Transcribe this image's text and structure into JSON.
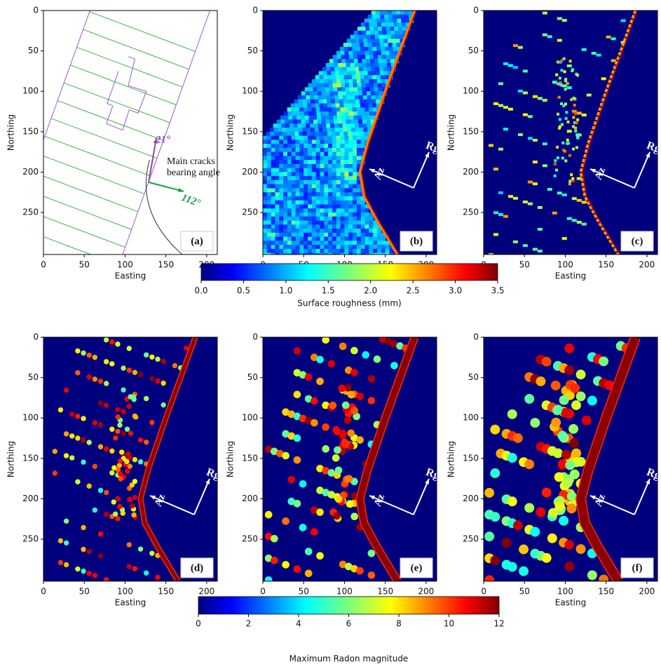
{
  "chart_data": [
    {
      "type": "diagram",
      "label": "(a)",
      "xlabel": "Easting",
      "ylabel": "Northing",
      "xlim": [
        0,
        213
      ],
      "ylim": [
        0,
        302
      ],
      "invert_y": true,
      "xticks": [
        0,
        50,
        100,
        150,
        200
      ],
      "yticks": [
        0,
        50,
        100,
        150,
        200,
        250
      ],
      "annotations": [
        "21°",
        "Main cracks",
        "bearing angle",
        "112°"
      ]
    },
    {
      "type": "heatmap",
      "label": "(b)",
      "xlabel": "Easting",
      "ylabel": "Northing",
      "xlim": [
        0,
        213
      ],
      "ylim": [
        0,
        302
      ],
      "invert_y": true,
      "xticks": [
        0,
        50,
        100,
        150,
        200
      ],
      "yticks": [
        0,
        50,
        100,
        150,
        200,
        250
      ],
      "annotations": [
        "Rg",
        "Az"
      ]
    },
    {
      "type": "heatmap",
      "label": "(c)",
      "xlabel": "Easting",
      "ylabel": "Northing",
      "xlim": [
        0,
        213
      ],
      "ylim": [
        0,
        302
      ],
      "invert_y": true,
      "xticks": [
        0,
        50,
        100,
        150,
        200
      ],
      "yticks": [
        0,
        50,
        100,
        150,
        200,
        250
      ],
      "annotations": [
        "Rg",
        "Az"
      ]
    },
    {
      "type": "heatmap",
      "label": "(d)",
      "xlabel": "Easting",
      "ylabel": "Northing",
      "xlim": [
        0,
        213
      ],
      "ylim": [
        0,
        302
      ],
      "invert_y": true,
      "xticks": [
        0,
        50,
        100,
        150,
        200
      ],
      "yticks": [
        0,
        50,
        100,
        150,
        200,
        250
      ],
      "annotations": [
        "Rg",
        "Az"
      ]
    },
    {
      "type": "heatmap",
      "label": "(e)",
      "xlabel": "Easting",
      "ylabel": "Northing",
      "xlim": [
        0,
        213
      ],
      "ylim": [
        0,
        302
      ],
      "invert_y": true,
      "xticks": [
        0,
        50,
        100,
        150,
        200
      ],
      "yticks": [
        0,
        50,
        100,
        150,
        200,
        250
      ],
      "annotations": [
        "Rg",
        "Az"
      ]
    },
    {
      "type": "heatmap",
      "label": "(f)",
      "xlabel": "Easting",
      "ylabel": "Northing",
      "xlim": [
        0,
        213
      ],
      "ylim": [
        0,
        302
      ],
      "invert_y": true,
      "xticks": [
        0,
        50,
        100,
        150,
        200
      ],
      "yticks": [
        0,
        50,
        100,
        150,
        200,
        250
      ],
      "annotations": [
        "Rg",
        "Az"
      ]
    },
    {
      "type": "colorbar",
      "label": "Surface roughness (mm)",
      "clim": [
        0,
        3.5
      ],
      "ticks": [
        {
          "value": 0,
          "label": "0.0"
        },
        {
          "value": 0.5,
          "label": "0.5"
        },
        {
          "value": 1,
          "label": "1.0"
        },
        {
          "value": 1.5,
          "label": "1.5"
        },
        {
          "value": 2,
          "label": "2.0"
        },
        {
          "value": 2.5,
          "label": "2.5"
        },
        {
          "value": 3,
          "label": "3.0"
        },
        {
          "value": 3.5,
          "label": "3.5"
        }
      ]
    },
    {
      "type": "colorbar",
      "label": "Maximum Radon magnitude",
      "clim": [
        0,
        12
      ],
      "ticks": [
        0,
        2,
        4,
        6,
        8,
        10,
        12
      ]
    }
  ]
}
